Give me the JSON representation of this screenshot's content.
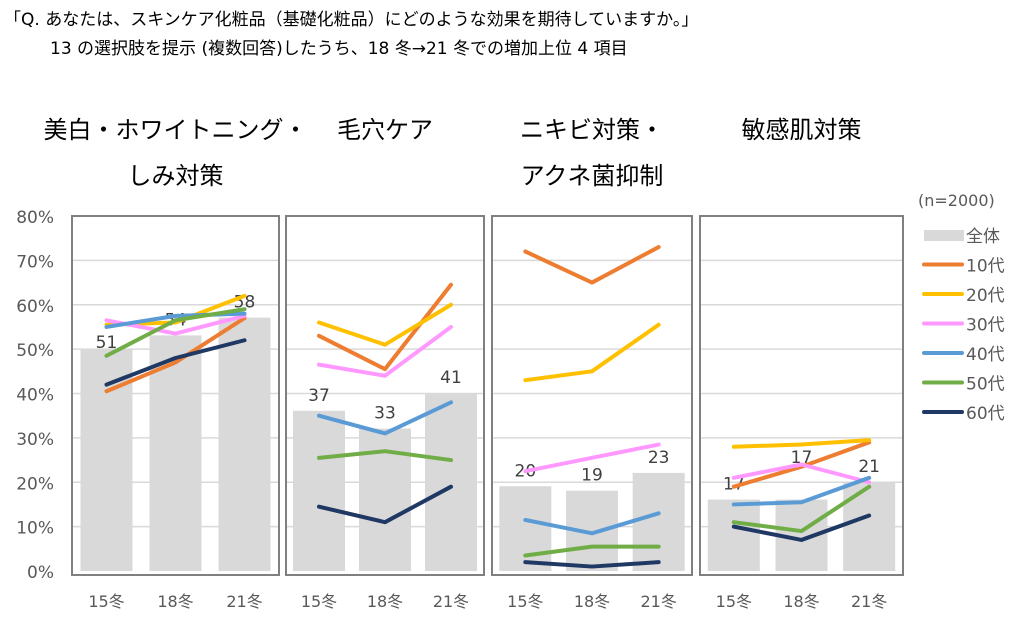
{
  "question": "「Q. あなたは、スキンケア化粧品（基礎化粧品）にどのような効果を期待していますか。」",
  "subtitle": "13 の選択肢を提示 (複数回答)したうち、18 冬→21 冬での増加上位 4 項目",
  "sample_note": "(n=2000)",
  "chart_data": {
    "type": "bar+line",
    "categories": [
      "15冬",
      "18冬",
      "21冬"
    ],
    "y_ticks": [
      "0%",
      "10%",
      "20%",
      "30%",
      "40%",
      "50%",
      "60%",
      "70%",
      "80%"
    ],
    "ylim": [
      0,
      80
    ],
    "grid": true,
    "legend_position": "right",
    "legend": [
      {
        "name": "全体",
        "color": "#d9d9d9"
      },
      {
        "name": "10代",
        "color": "#ed7d31"
      },
      {
        "name": "20代",
        "color": "#ffc000"
      },
      {
        "name": "30代",
        "color": "#ff99ff"
      },
      {
        "name": "40代",
        "color": "#5b9bd5"
      },
      {
        "name": "50代",
        "color": "#70ad47"
      },
      {
        "name": "60代",
        "color": "#1f3864"
      }
    ],
    "panels": [
      {
        "title": [
          "美白・ホワイトニング・",
          "しみ対策"
        ],
        "bars": [
          51,
          54,
          58
        ],
        "series": [
          [
            40.5,
            47,
            57
          ],
          [
            55.5,
            56,
            62
          ],
          [
            56.5,
            53.5,
            57.5
          ],
          [
            55,
            57.5,
            58
          ],
          [
            48.5,
            56.5,
            59
          ],
          [
            42,
            48,
            52
          ]
        ]
      },
      {
        "title": [
          "毛穴ケア"
        ],
        "bars": [
          37,
          33,
          41
        ],
        "series": [
          [
            53,
            45.5,
            64.5
          ],
          [
            56,
            51,
            60
          ],
          [
            46.5,
            44,
            55
          ],
          [
            35,
            31,
            38
          ],
          [
            25.5,
            27,
            25
          ],
          [
            14.5,
            11,
            19
          ]
        ]
      },
      {
        "title": [
          "ニキビ対策・",
          "アクネ菌抑制"
        ],
        "bars": [
          20,
          19,
          23
        ],
        "series": [
          [
            72,
            65,
            73
          ],
          [
            43,
            45,
            55.5
          ],
          [
            22.5,
            25.5,
            28.5
          ],
          [
            11.5,
            8.5,
            13
          ],
          [
            3.5,
            5.5,
            5.5
          ],
          [
            2,
            1,
            2
          ]
        ]
      },
      {
        "title": [
          "敏感肌対策"
        ],
        "bars": [
          17,
          17,
          21
        ],
        "series": [
          [
            19,
            23.5,
            29
          ],
          [
            28,
            28.5,
            29.5
          ],
          [
            21,
            24,
            20
          ],
          [
            15,
            15.5,
            21
          ],
          [
            11,
            9,
            19
          ],
          [
            10,
            7,
            12.5
          ]
        ]
      }
    ]
  }
}
